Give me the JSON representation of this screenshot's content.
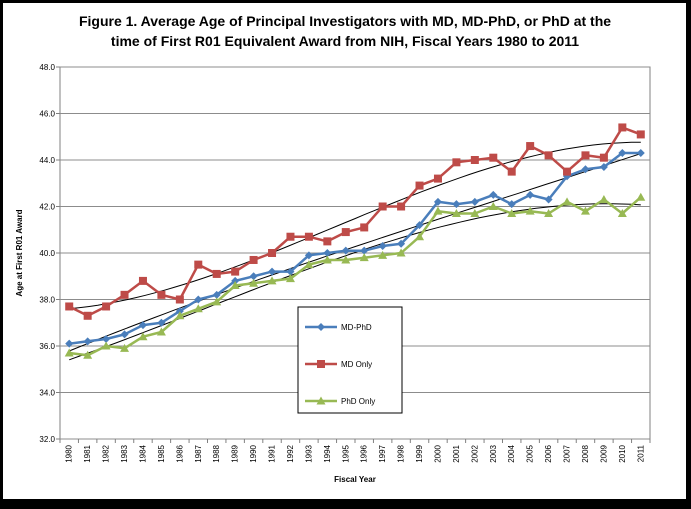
{
  "chart_data": {
    "type": "line",
    "title_line1": "Figure 1.   Average Age of Principal Investigators with MD, MD-PhD,  or PhD at the",
    "title_line2": "time of First R01 Equivalent Award from NIH, Fiscal Years 1980 to 2011",
    "xlabel": "Fiscal Year",
    "ylabel": "Age at First R01 Award",
    "ylim": [
      32.0,
      48.0
    ],
    "yticks": [
      "32.0",
      "34.0",
      "36.0",
      "38.0",
      "40.0",
      "42.0",
      "44.0",
      "46.0",
      "48.0"
    ],
    "categories": [
      "1980",
      "1981",
      "1982",
      "1983",
      "1984",
      "1985",
      "1986",
      "1987",
      "1988",
      "1989",
      "1990",
      "1991",
      "1992",
      "1993",
      "1994",
      "1995",
      "1996",
      "1997",
      "1998",
      "1999",
      "2000",
      "2001",
      "2002",
      "2003",
      "2004",
      "2005",
      "2006",
      "2007",
      "2008",
      "2009",
      "2010",
      "2011"
    ],
    "grid": true,
    "legend_position": "center-left",
    "series": [
      {
        "name": "MD-PhD",
        "color": "#4A7EBB",
        "marker": "diamond",
        "values": [
          36.1,
          36.2,
          36.3,
          36.5,
          36.9,
          37.0,
          37.5,
          38.0,
          38.2,
          38.8,
          39.0,
          39.2,
          39.2,
          39.9,
          40.0,
          40.1,
          40.1,
          40.3,
          40.4,
          41.2,
          42.2,
          42.1,
          42.2,
          42.5,
          42.1,
          42.5,
          42.3,
          43.3,
          43.6,
          43.7,
          44.3,
          44.3
        ]
      },
      {
        "name": "MD Only",
        "color": "#BE4B48",
        "marker": "square",
        "values": [
          37.7,
          37.3,
          37.7,
          38.2,
          38.8,
          38.2,
          38.0,
          39.5,
          39.1,
          39.2,
          39.7,
          40.0,
          40.7,
          40.7,
          40.5,
          40.9,
          41.1,
          42.0,
          42.0,
          42.9,
          43.2,
          43.9,
          44.0,
          44.1,
          43.5,
          44.6,
          44.2,
          43.5,
          44.2,
          44.1,
          45.4,
          45.1
        ]
      },
      {
        "name": "PhD Only",
        "color": "#98B954",
        "marker": "triangle",
        "values": [
          35.7,
          35.6,
          36.0,
          35.9,
          36.4,
          36.6,
          37.3,
          37.6,
          37.9,
          38.6,
          38.7,
          38.8,
          38.9,
          39.5,
          39.7,
          39.7,
          39.8,
          39.9,
          40.0,
          40.7,
          41.8,
          41.7,
          41.7,
          42.0,
          41.7,
          41.8,
          41.7,
          42.2,
          41.8,
          42.3,
          41.7,
          42.4
        ]
      }
    ]
  }
}
